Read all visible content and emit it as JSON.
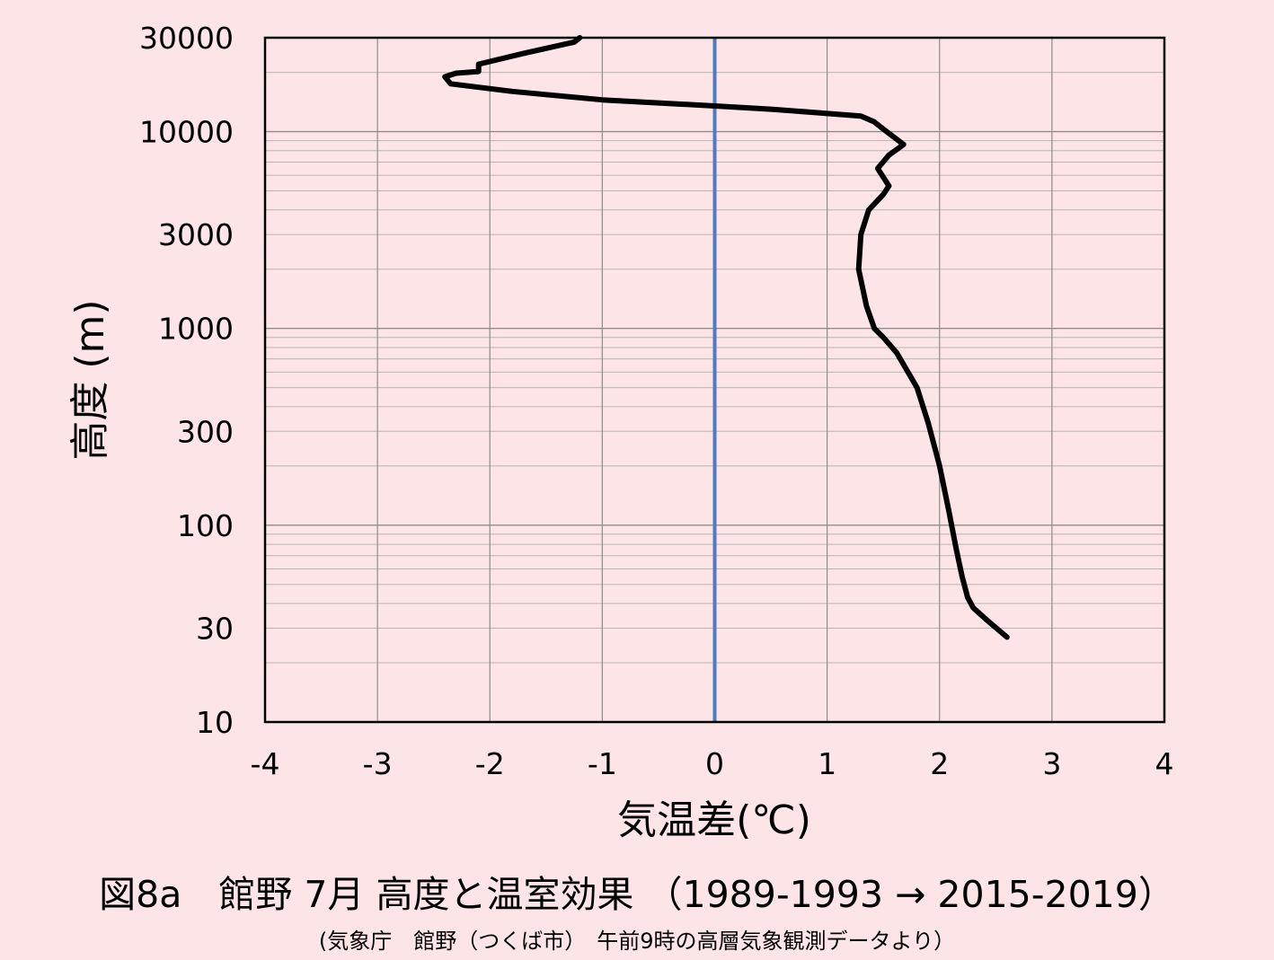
{
  "title": "図8a　館野 7月 高度と温室効果 （1989-1993 → 2015-2019）",
  "subtitle": "(気象庁　館野（つくば市）　午前9時の高層気象観測データより）",
  "chart_data": {
    "type": "line",
    "xlabel": "気温差(℃)",
    "ylabel": "高度 (m)",
    "xlim": [
      -4,
      4
    ],
    "ylim": [
      10,
      30000
    ],
    "y_scale": "log",
    "grid": true,
    "x_ticks": [
      -4,
      -3,
      -2,
      -1,
      0,
      1,
      2,
      3,
      4
    ],
    "x_tick_labels": [
      "-4",
      "-3",
      "-2",
      "-1",
      "0",
      "1",
      "2",
      "3",
      "4"
    ],
    "y_ticks": [
      10,
      30,
      100,
      300,
      1000,
      3000,
      10000,
      30000
    ],
    "y_tick_labels": [
      "10",
      "30",
      "100",
      "300",
      "1000",
      "3000",
      "10000",
      "30000"
    ],
    "reference_line": {
      "x": 0,
      "color": "#4f7bbf"
    },
    "series": [
      {
        "color": "#000000",
        "points": [
          {
            "x": 2.6,
            "y": 27
          },
          {
            "x": 2.42,
            "y": 33
          },
          {
            "x": 2.3,
            "y": 38
          },
          {
            "x": 2.25,
            "y": 43
          },
          {
            "x": 2.2,
            "y": 55
          },
          {
            "x": 2.15,
            "y": 75
          },
          {
            "x": 2.08,
            "y": 120
          },
          {
            "x": 2.0,
            "y": 200
          },
          {
            "x": 1.9,
            "y": 330
          },
          {
            "x": 1.8,
            "y": 500
          },
          {
            "x": 1.62,
            "y": 750
          },
          {
            "x": 1.5,
            "y": 900
          },
          {
            "x": 1.42,
            "y": 1000
          },
          {
            "x": 1.35,
            "y": 1300
          },
          {
            "x": 1.28,
            "y": 2000
          },
          {
            "x": 1.3,
            "y": 3000
          },
          {
            "x": 1.37,
            "y": 4000
          },
          {
            "x": 1.5,
            "y": 4800
          },
          {
            "x": 1.55,
            "y": 5300
          },
          {
            "x": 1.45,
            "y": 6500
          },
          {
            "x": 1.55,
            "y": 7600
          },
          {
            "x": 1.68,
            "y": 8600
          },
          {
            "x": 1.5,
            "y": 10300
          },
          {
            "x": 1.42,
            "y": 11200
          },
          {
            "x": 1.3,
            "y": 12000
          },
          {
            "x": 0.5,
            "y": 13000
          },
          {
            "x": 0.0,
            "y": 13500
          },
          {
            "x": -1.0,
            "y": 14500
          },
          {
            "x": -1.8,
            "y": 16000
          },
          {
            "x": -2.35,
            "y": 17500
          },
          {
            "x": -2.4,
            "y": 19000
          },
          {
            "x": -2.3,
            "y": 19800
          },
          {
            "x": -2.1,
            "y": 20200
          },
          {
            "x": -2.1,
            "y": 22000
          },
          {
            "x": -1.7,
            "y": 25000
          },
          {
            "x": -1.25,
            "y": 28500
          },
          {
            "x": -1.2,
            "y": 30000
          }
        ]
      }
    ]
  }
}
